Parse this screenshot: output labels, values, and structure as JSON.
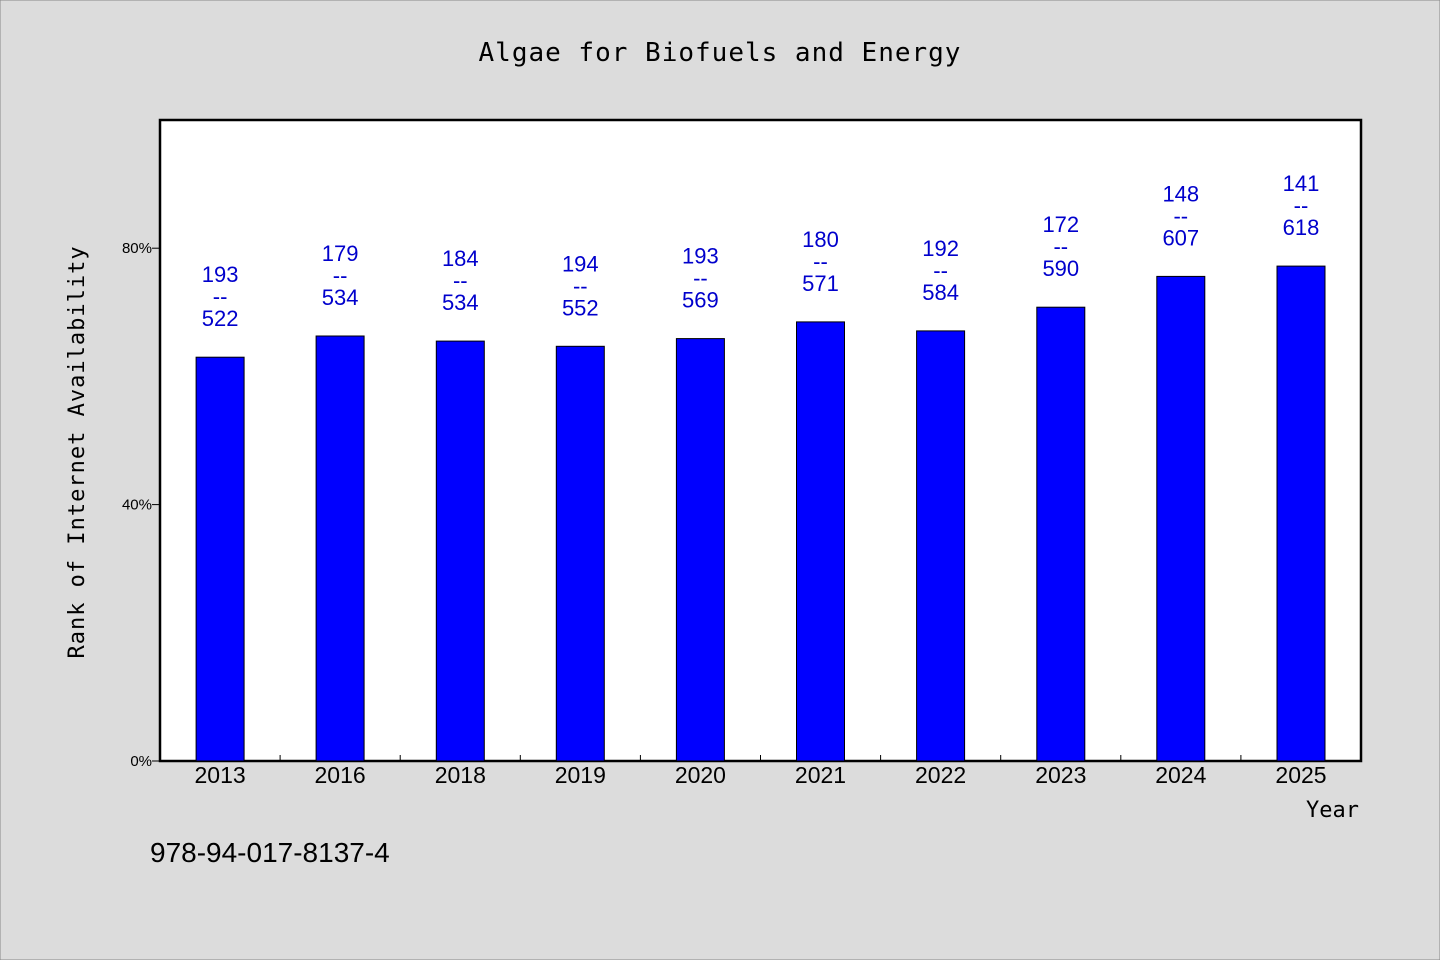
{
  "chart_data": {
    "type": "bar",
    "title": "Algae for Biofuels and Energy",
    "xlabel": "Year",
    "ylabel": "Rank of Internet Availability",
    "footer_text": "978-94-017-8137-4",
    "ylim": [
      0,
      100
    ],
    "yticks": [
      {
        "value": 0,
        "label": "0%"
      },
      {
        "value": 40,
        "label": "40%"
      },
      {
        "value": 80,
        "label": "80%"
      }
    ],
    "grid": false,
    "categories": [
      "2013",
      "2016",
      "2018",
      "2019",
      "2020",
      "2021",
      "2022",
      "2023",
      "2024",
      "2025"
    ],
    "values": [
      63.0,
      66.3,
      65.5,
      64.7,
      65.9,
      68.5,
      67.1,
      70.8,
      75.6,
      77.2
    ],
    "data_labels": [
      {
        "top": "193",
        "sep": "--",
        "bottom": "522"
      },
      {
        "top": "179",
        "sep": "--",
        "bottom": "534"
      },
      {
        "top": "184",
        "sep": "--",
        "bottom": "534"
      },
      {
        "top": "194",
        "sep": "--",
        "bottom": "552"
      },
      {
        "top": "193",
        "sep": "--",
        "bottom": "569"
      },
      {
        "top": "180",
        "sep": "--",
        "bottom": "571"
      },
      {
        "top": "192",
        "sep": "--",
        "bottom": "584"
      },
      {
        "top": "172",
        "sep": "--",
        "bottom": "590"
      },
      {
        "top": "148",
        "sep": "--",
        "bottom": "607"
      },
      {
        "top": "141",
        "sep": "--",
        "bottom": "618"
      }
    ],
    "colors": {
      "bar": "#0000ff",
      "bar_edge": "#000000",
      "data_label": "#0000cc",
      "background": "#dcdcdc",
      "plot_background": "#ffffff"
    }
  }
}
